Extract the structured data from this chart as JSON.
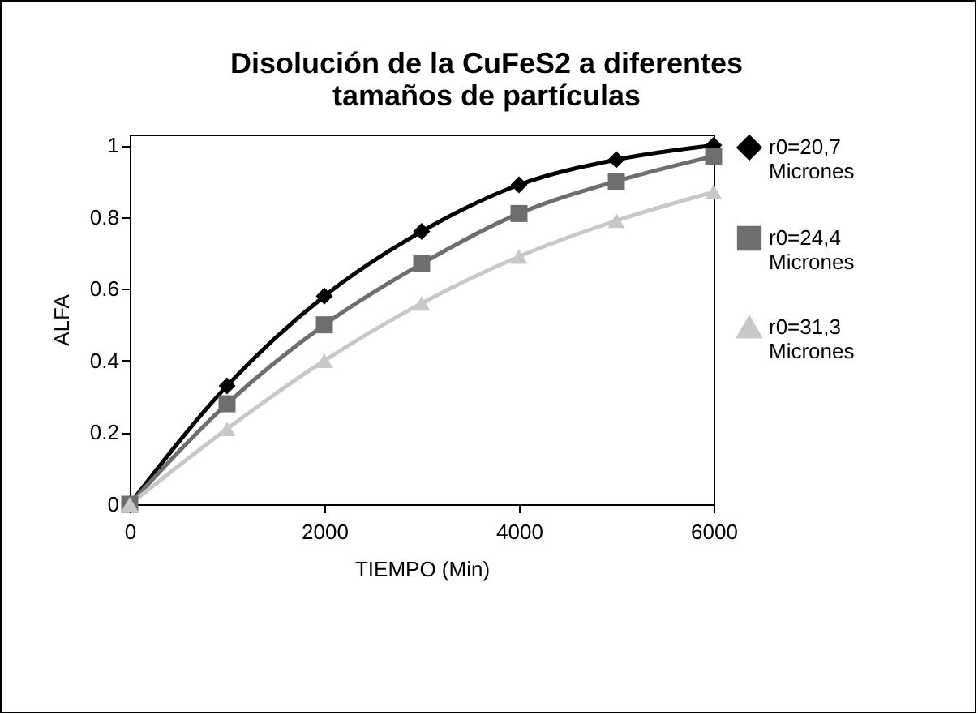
{
  "chart_data": {
    "type": "line",
    "title": [
      "Disolución de la CuFeS2 a diferentes",
      "tamaños de partículas"
    ],
    "xlabel": "TIEMPO (Min)",
    "ylabel": "ALFA",
    "x": [
      0,
      1000,
      2000,
      3000,
      4000,
      5000,
      6000
    ],
    "xlim": [
      0,
      6000
    ],
    "xticks": [
      0,
      2000,
      4000,
      6000
    ],
    "ylim": [
      0,
      1.03
    ],
    "yticks": [
      0,
      0.2,
      0.4,
      0.6,
      0.8,
      1
    ],
    "grid": false,
    "legend": "right",
    "line_style": "solid",
    "series": [
      {
        "name": "r0=20,7 Micrones",
        "color": "#000000",
        "marker": "diamond",
        "values": [
          0,
          0.33,
          0.58,
          0.76,
          0.89,
          0.96,
          1.0
        ]
      },
      {
        "name": "r0=24,4 Micrones",
        "color": "#6e6e6e",
        "marker": "square",
        "values": [
          0,
          0.28,
          0.5,
          0.67,
          0.81,
          0.9,
          0.97
        ]
      },
      {
        "name": "r0=31,3 Micrones",
        "color": "#c8c8c8",
        "marker": "triangle",
        "values": [
          0,
          0.21,
          0.4,
          0.56,
          0.69,
          0.79,
          0.87
        ]
      }
    ]
  }
}
